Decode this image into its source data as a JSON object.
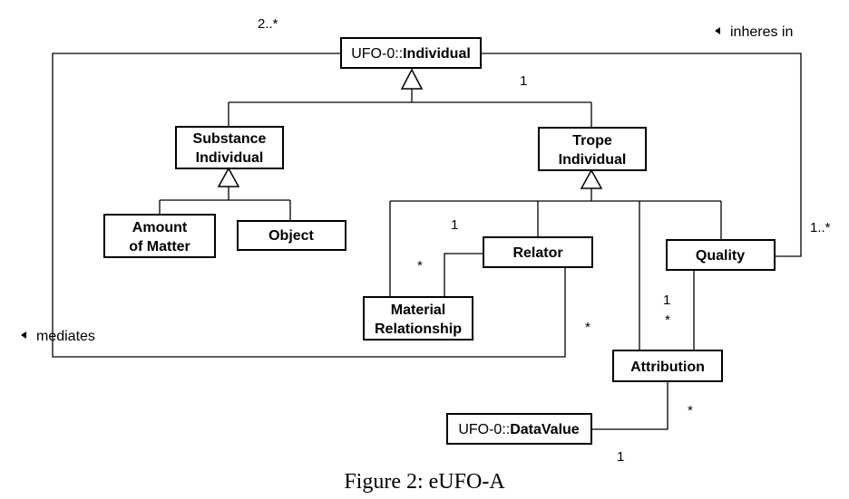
{
  "classes": {
    "individual": {
      "prefix": "UFO-0::",
      "name": "Individual"
    },
    "substance": {
      "line1": "Substance",
      "line2": "Individual"
    },
    "trope": {
      "line1": "Trope",
      "line2": "Individual"
    },
    "amount": {
      "line1": "Amount",
      "line2": "of Matter"
    },
    "object": {
      "name": "Object"
    },
    "relator": {
      "name": "Relator"
    },
    "quality": {
      "name": "Quality"
    },
    "material": {
      "line1": "Material",
      "line2": "Relationship"
    },
    "attribution": {
      "name": "Attribution"
    },
    "datavalue": {
      "prefix": "UFO-0::",
      "name": "DataValue"
    }
  },
  "associations": {
    "inheres_in": "inheres in",
    "mediates": "mediates"
  },
  "multiplicities": {
    "individual_mediates": "2..*",
    "individual_inheres": "1",
    "quality_inheres": "1..*",
    "relator_material": "1",
    "material_relator": "*",
    "relator_mediates": "*",
    "quality_attribution": "1",
    "attribution_quality": "*",
    "attribution_datavalue": "*",
    "datavalue_attribution": "1"
  },
  "caption": "Figure 2: eUFO-A"
}
